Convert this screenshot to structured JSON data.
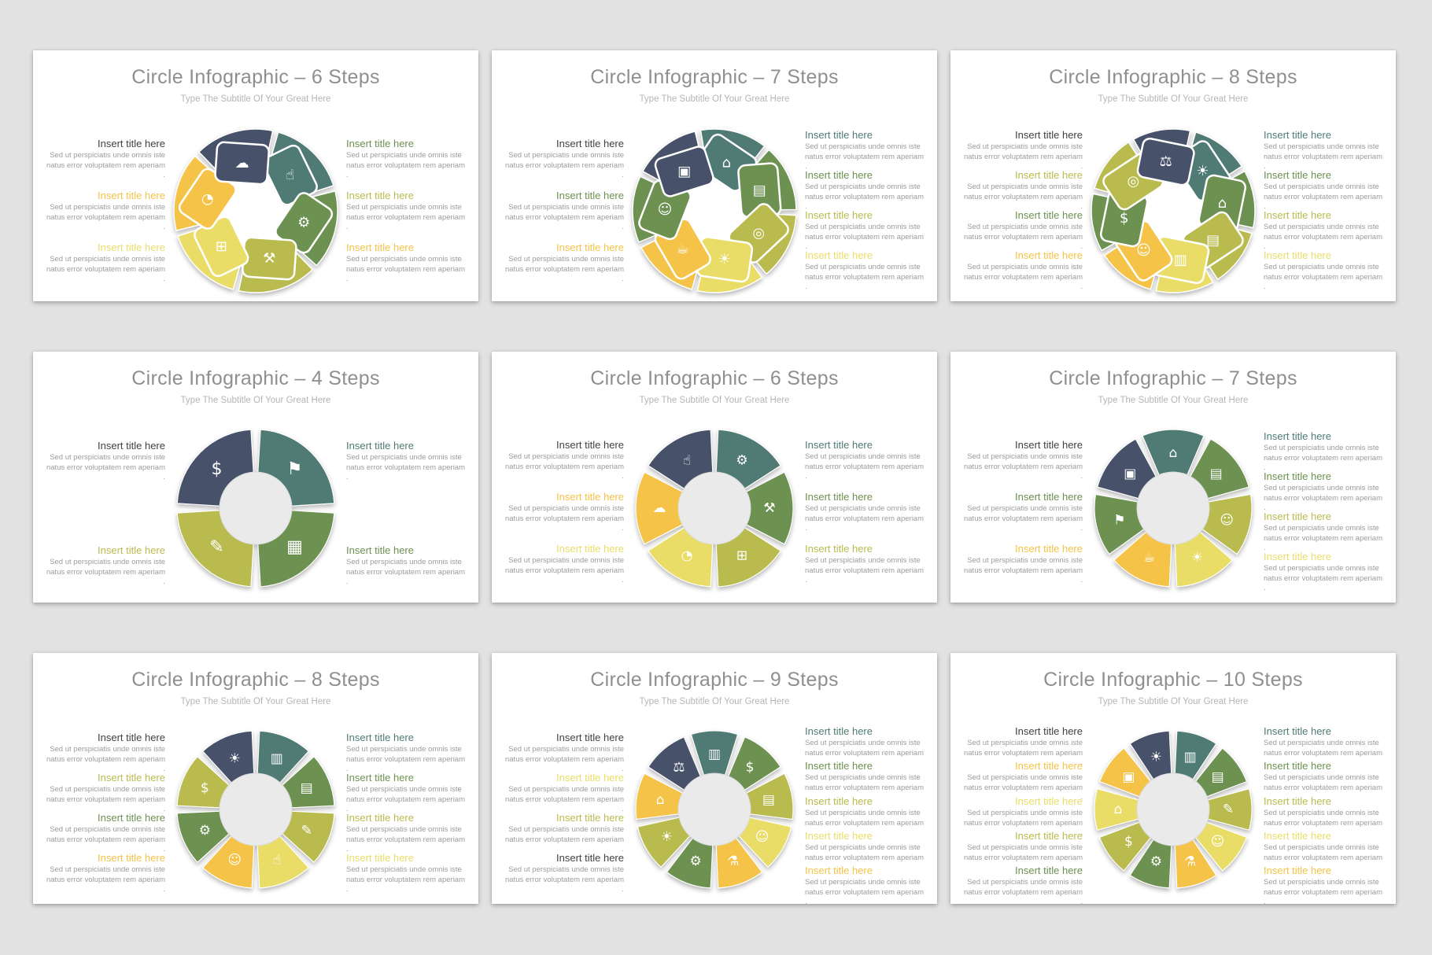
{
  "page": {
    "background": "#e2e2e2"
  },
  "common": {
    "subtitle": "Type The Subtitle Of Your Great Here",
    "block_title": "Insert title here",
    "block_body": "Sed ut perspiciatis unde omnis iste\nnatus error voluptatem rem aperiam ."
  },
  "palette": {
    "navy": "#47526a",
    "teal": "#4f7b74",
    "green": "#6c9150",
    "olive": "#b9bb4e",
    "pale": "#e9dd68",
    "amber": "#f4c347",
    "dark": "#414141",
    "center_circle": "#eaeaea",
    "icon": "#ffffff"
  },
  "slides": [
    {
      "title": "Circle Infographic – 6 Steps",
      "style": "pinwheel",
      "steps": 6,
      "segments": [
        {
          "color": "teal",
          "icon": "touch-icon",
          "glyph": "☝"
        },
        {
          "color": "green",
          "icon": "gear-icon",
          "glyph": "⚙"
        },
        {
          "color": "olive",
          "icon": "tools-icon",
          "glyph": "⚒"
        },
        {
          "color": "pale",
          "icon": "cart-icon",
          "glyph": "⊞"
        },
        {
          "color": "amber",
          "icon": "pie-chart-icon",
          "glyph": "◔"
        },
        {
          "color": "navy",
          "icon": "cloud-sync-icon",
          "glyph": "☁"
        }
      ],
      "left_titles": [
        "dark",
        "amber",
        "pale"
      ],
      "right_titles": [
        "green",
        "olive",
        "amber"
      ]
    },
    {
      "title": "Circle Infographic – 7 Steps",
      "style": "pinwheel",
      "steps": 7,
      "segments": [
        {
          "color": "teal",
          "icon": "factory-icon",
          "glyph": "⌂"
        },
        {
          "color": "green",
          "icon": "document-icon",
          "glyph": "▤"
        },
        {
          "color": "olive",
          "icon": "search-report-icon",
          "glyph": "◎"
        },
        {
          "color": "pale",
          "icon": "idea-icon",
          "glyph": "☀"
        },
        {
          "color": "amber",
          "icon": "phone-coffee-icon",
          "glyph": "☕"
        },
        {
          "color": "green",
          "icon": "presenter-icon",
          "glyph": "☺"
        },
        {
          "color": "navy",
          "icon": "briefcase-icon",
          "glyph": "▣"
        }
      ],
      "left_titles": [
        "dark",
        "green",
        "amber"
      ],
      "right_titles": [
        "teal",
        "green",
        "olive",
        "pale"
      ]
    },
    {
      "title": "Circle Infographic – 8 Steps",
      "style": "pinwheel",
      "steps": 8,
      "segments": [
        {
          "color": "teal",
          "icon": "bulb-gear-icon",
          "glyph": "☀"
        },
        {
          "color": "green",
          "icon": "building-icon",
          "glyph": "⌂"
        },
        {
          "color": "olive",
          "icon": "wallet-icon",
          "glyph": "▤"
        },
        {
          "color": "pale",
          "icon": "chart-icon",
          "glyph": "▥"
        },
        {
          "color": "amber",
          "icon": "people-icon",
          "glyph": "☺"
        },
        {
          "color": "green",
          "icon": "coins-icon",
          "glyph": "$"
        },
        {
          "color": "olive",
          "icon": "analysis-icon",
          "glyph": "◎"
        },
        {
          "color": "navy",
          "icon": "money-bag-icon",
          "glyph": "⚖"
        }
      ],
      "left_titles": [
        "dark",
        "olive",
        "green",
        "amber"
      ],
      "right_titles": [
        "teal",
        "green",
        "olive",
        "pale"
      ]
    },
    {
      "title": "Circle Infographic – 4 Steps",
      "style": "donut",
      "steps": 4,
      "segments": [
        {
          "color": "teal",
          "icon": "presentation-icon",
          "glyph": "⚑"
        },
        {
          "color": "green",
          "icon": "calendar-icon",
          "glyph": "▦"
        },
        {
          "color": "olive",
          "icon": "clipboard-icon",
          "glyph": "✎"
        },
        {
          "color": "navy",
          "icon": "dollar-coin-icon",
          "glyph": "$"
        }
      ],
      "left_titles": [
        "dark",
        "olive"
      ],
      "right_titles": [
        "teal",
        "green"
      ]
    },
    {
      "title": "Circle Infographic – 6 Steps",
      "style": "donut",
      "steps": 6,
      "segments": [
        {
          "color": "teal",
          "icon": "gear-icon",
          "glyph": "⚙"
        },
        {
          "color": "green",
          "icon": "tools-icon",
          "glyph": "⚒"
        },
        {
          "color": "olive",
          "icon": "cart-icon",
          "glyph": "⊞"
        },
        {
          "color": "pale",
          "icon": "pie-chart-icon",
          "glyph": "◔"
        },
        {
          "color": "amber",
          "icon": "cloud-sync-icon",
          "glyph": "☁"
        },
        {
          "color": "navy",
          "icon": "touch-icon",
          "glyph": "☝"
        }
      ],
      "left_titles": [
        "dark",
        "amber",
        "pale"
      ],
      "right_titles": [
        "teal",
        "green",
        "olive"
      ]
    },
    {
      "title": "Circle Infographic – 7 Steps",
      "style": "donut",
      "steps": 7,
      "segments": [
        {
          "color": "teal",
          "icon": "factory-icon",
          "glyph": "⌂"
        },
        {
          "color": "green",
          "icon": "document-icon",
          "glyph": "▤"
        },
        {
          "color": "olive",
          "icon": "person-gear-icon",
          "glyph": "☺"
        },
        {
          "color": "pale",
          "icon": "idea-icon",
          "glyph": "☀"
        },
        {
          "color": "amber",
          "icon": "phone-coffee-icon",
          "glyph": "☕"
        },
        {
          "color": "green",
          "icon": "presenter-icon",
          "glyph": "⚑"
        },
        {
          "color": "navy",
          "icon": "briefcase-icon",
          "glyph": "▣"
        }
      ],
      "left_titles": [
        "dark",
        "green",
        "amber"
      ],
      "right_titles": [
        "teal",
        "green",
        "olive",
        "pale"
      ]
    },
    {
      "title": "Circle Infographic – 8 Steps",
      "style": "donut",
      "steps": 8,
      "segments": [
        {
          "color": "teal",
          "icon": "report-icon",
          "glyph": "▥"
        },
        {
          "color": "green",
          "icon": "wallet-icon",
          "glyph": "▤"
        },
        {
          "color": "olive",
          "icon": "document-icon",
          "glyph": "✎"
        },
        {
          "color": "pale",
          "icon": "person-idea-icon",
          "glyph": "☝"
        },
        {
          "color": "amber",
          "icon": "people-icon",
          "glyph": "☺"
        },
        {
          "color": "green",
          "icon": "gears-chart-icon",
          "glyph": "⚙"
        },
        {
          "color": "olive",
          "icon": "coins-icon",
          "glyph": "$"
        },
        {
          "color": "navy",
          "icon": "bulb-icon",
          "glyph": "☀"
        }
      ],
      "left_titles": [
        "dark",
        "olive",
        "green",
        "amber"
      ],
      "right_titles": [
        "teal",
        "green",
        "olive",
        "pale"
      ]
    },
    {
      "title": "Circle Infographic – 9 Steps",
      "style": "donut",
      "steps": 9,
      "segments": [
        {
          "color": "teal",
          "icon": "report-icon",
          "glyph": "▥"
        },
        {
          "color": "green",
          "icon": "coins-icon",
          "glyph": "$"
        },
        {
          "color": "olive",
          "icon": "document-icon",
          "glyph": "▤"
        },
        {
          "color": "pale",
          "icon": "people-icon",
          "glyph": "☺"
        },
        {
          "color": "amber",
          "icon": "flask-icon",
          "glyph": "⚗"
        },
        {
          "color": "green",
          "icon": "gears-icon",
          "glyph": "⚙"
        },
        {
          "color": "olive",
          "icon": "bulb-icon",
          "glyph": "☀"
        },
        {
          "color": "amber",
          "icon": "building-icon",
          "glyph": "⌂"
        },
        {
          "color": "navy",
          "icon": "wallet-icon",
          "glyph": "⚖"
        }
      ],
      "left_titles": [
        "dark",
        "pale",
        "olive",
        "dark"
      ],
      "right_titles": [
        "teal",
        "green",
        "olive",
        "pale",
        "amber"
      ]
    },
    {
      "title": "Circle Infographic – 10 Steps",
      "style": "donut",
      "steps": 10,
      "segments": [
        {
          "color": "teal",
          "icon": "report-icon",
          "glyph": "▥"
        },
        {
          "color": "green",
          "icon": "wallet-icon",
          "glyph": "▤"
        },
        {
          "color": "olive",
          "icon": "document-icon",
          "glyph": "✎"
        },
        {
          "color": "pale",
          "icon": "people-icon",
          "glyph": "☺"
        },
        {
          "color": "amber",
          "icon": "flask-icon",
          "glyph": "⚗"
        },
        {
          "color": "green",
          "icon": "gears-icon",
          "glyph": "⚙"
        },
        {
          "color": "olive",
          "icon": "coins-icon",
          "glyph": "$"
        },
        {
          "color": "pale",
          "icon": "factory-icon",
          "glyph": "⌂"
        },
        {
          "color": "amber",
          "icon": "briefcase-icon",
          "glyph": "▣"
        },
        {
          "color": "navy",
          "icon": "bulb-icon",
          "glyph": "☀"
        }
      ],
      "left_titles": [
        "dark",
        "amber",
        "pale",
        "olive",
        "green"
      ],
      "right_titles": [
        "teal",
        "green",
        "olive",
        "pale",
        "amber"
      ]
    }
  ]
}
